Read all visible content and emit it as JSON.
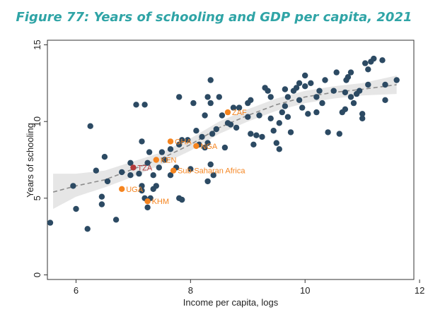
{
  "figure_title": "Figure 77: Years of schooling and GDP per capita, 2021",
  "colors": {
    "title": "#2fa4a6",
    "points": "#2c4a63",
    "highlight": "#f5841f",
    "highlight_label": "#f5841f",
    "tanzania": "#b33a3a",
    "fit_line": "#8c8c8c",
    "ci_band": "#e6e6e6"
  },
  "chart_data": {
    "type": "scatter",
    "title": "Figure 77: Years of schooling and GDP per capita, 2021",
    "xlabel": "Income per capita, logs",
    "ylabel": "Years of schooling",
    "xlim": [
      5.5,
      11.9
    ],
    "ylim": [
      -0.3,
      15.3
    ],
    "xticks": [
      6,
      8,
      10,
      12
    ],
    "yticks": [
      0,
      5,
      10,
      15
    ],
    "grid": false,
    "legend": "none",
    "series": [
      {
        "values": [
          [
            5.55,
            3.4
          ],
          [
            5.95,
            5.8
          ],
          [
            6.0,
            4.3
          ],
          [
            6.2,
            3.0
          ],
          [
            6.25,
            9.7
          ],
          [
            6.35,
            6.8
          ],
          [
            6.45,
            5.1
          ],
          [
            6.45,
            4.6
          ],
          [
            6.5,
            7.7
          ],
          [
            6.55,
            6.1
          ],
          [
            6.7,
            3.6
          ],
          [
            6.8,
            6.7
          ],
          [
            6.95,
            6.5
          ],
          [
            6.95,
            7.3
          ],
          [
            7.05,
            11.1
          ],
          [
            7.1,
            6.6
          ],
          [
            7.15,
            5.8
          ],
          [
            7.15,
            5.5
          ],
          [
            7.15,
            8.7
          ],
          [
            7.2,
            11.1
          ],
          [
            7.2,
            5.0
          ],
          [
            7.25,
            7.3
          ],
          [
            7.25,
            4.4
          ],
          [
            7.28,
            8.0
          ],
          [
            7.3,
            5.0
          ],
          [
            7.35,
            6.5
          ],
          [
            7.35,
            5.6
          ],
          [
            7.4,
            5.8
          ],
          [
            7.45,
            7.0
          ],
          [
            7.5,
            8.0
          ],
          [
            7.55,
            7.5
          ],
          [
            7.65,
            8.2
          ],
          [
            7.65,
            6.5
          ],
          [
            7.75,
            7.0
          ],
          [
            7.8,
            8.5
          ],
          [
            7.8,
            11.6
          ],
          [
            7.8,
            5.0
          ],
          [
            7.85,
            4.9
          ],
          [
            7.85,
            8.8
          ],
          [
            7.95,
            8.8
          ],
          [
            8.0,
            6.9
          ],
          [
            8.05,
            11.2
          ],
          [
            8.1,
            9.4
          ],
          [
            8.15,
            8.5
          ],
          [
            8.2,
            9.0
          ],
          [
            8.25,
            8.3
          ],
          [
            8.25,
            10.4
          ],
          [
            8.3,
            6.1
          ],
          [
            8.3,
            8.6
          ],
          [
            8.3,
            11.6
          ],
          [
            8.35,
            12.7
          ],
          [
            8.35,
            11.2
          ],
          [
            8.35,
            7.2
          ],
          [
            8.38,
            9.2
          ],
          [
            8.4,
            6.5
          ],
          [
            8.45,
            9.5
          ],
          [
            8.5,
            11.6
          ],
          [
            8.55,
            10.4
          ],
          [
            8.6,
            8.3
          ],
          [
            8.65,
            9.9
          ],
          [
            8.7,
            9.8
          ],
          [
            8.75,
            10.9
          ],
          [
            8.8,
            9.6
          ],
          [
            8.85,
            10.9
          ],
          [
            9.0,
            11.2
          ],
          [
            9.0,
            10.3
          ],
          [
            9.05,
            9.2
          ],
          [
            9.05,
            11.4
          ],
          [
            9.1,
            8.5
          ],
          [
            9.15,
            9.1
          ],
          [
            9.2,
            10.4
          ],
          [
            9.25,
            9.0
          ],
          [
            9.3,
            12.2
          ],
          [
            9.35,
            12.0
          ],
          [
            9.4,
            11.6
          ],
          [
            9.4,
            10.2
          ],
          [
            9.45,
            9.4
          ],
          [
            9.5,
            8.6
          ],
          [
            9.55,
            8.2
          ],
          [
            9.55,
            9.9
          ],
          [
            9.6,
            10.6
          ],
          [
            9.65,
            11.0
          ],
          [
            9.65,
            12.1
          ],
          [
            9.7,
            11.6
          ],
          [
            9.7,
            10.3
          ],
          [
            9.75,
            9.3
          ],
          [
            9.8,
            12.0
          ],
          [
            9.85,
            12.2
          ],
          [
            9.9,
            12.5
          ],
          [
            9.9,
            11.4
          ],
          [
            9.95,
            10.9
          ],
          [
            10.0,
            13.0
          ],
          [
            10.0,
            12.3
          ],
          [
            10.05,
            10.5
          ],
          [
            10.1,
            12.5
          ],
          [
            10.2,
            11.6
          ],
          [
            10.2,
            10.6
          ],
          [
            10.25,
            12.0
          ],
          [
            10.3,
            11.2
          ],
          [
            10.35,
            12.7
          ],
          [
            10.4,
            9.3
          ],
          [
            10.5,
            12.0
          ],
          [
            10.55,
            13.2
          ],
          [
            10.6,
            9.2
          ],
          [
            10.65,
            10.6
          ],
          [
            10.7,
            10.8
          ],
          [
            10.7,
            11.9
          ],
          [
            10.72,
            12.7
          ],
          [
            10.75,
            12.9
          ],
          [
            10.8,
            11.6
          ],
          [
            10.8,
            13.2
          ],
          [
            10.85,
            11.2
          ],
          [
            10.9,
            11.8
          ],
          [
            10.95,
            12.0
          ],
          [
            11.0,
            10.2
          ],
          [
            11.0,
            10.5
          ],
          [
            11.05,
            13.8
          ],
          [
            11.1,
            13.4
          ],
          [
            11.1,
            12.4
          ],
          [
            11.15,
            13.9
          ],
          [
            11.2,
            14.1
          ],
          [
            11.35,
            14.0
          ],
          [
            11.4,
            12.4
          ],
          [
            11.4,
            11.4
          ],
          [
            11.6,
            12.7
          ]
        ]
      }
    ],
    "highlighted": [
      {
        "label": "GHA",
        "x": 7.65,
        "y": 8.7
      },
      {
        "label": "ZAF",
        "x": 8.65,
        "y": 10.6
      },
      {
        "label": "NGA",
        "x": 8.1,
        "y": 8.4
      },
      {
        "label": "KEN",
        "x": 7.4,
        "y": 7.5
      },
      {
        "label": "TZA",
        "x": 7.0,
        "y": 7.0
      },
      {
        "label": "Sub-Saharan Africa",
        "x": 7.7,
        "y": 6.8
      },
      {
        "label": "UGA",
        "x": 6.8,
        "y": 5.6
      },
      {
        "label": "KHM",
        "x": 7.25,
        "y": 4.8
      }
    ],
    "fit": {
      "type": "dashed-smooth",
      "x": [
        5.6,
        6.0,
        6.5,
        7.0,
        7.5,
        8.0,
        8.5,
        9.0,
        9.5,
        10.0,
        10.5,
        11.0,
        11.6
      ],
      "y": [
        5.4,
        5.8,
        6.2,
        6.9,
        7.6,
        8.5,
        9.6,
        10.4,
        11.1,
        11.6,
        11.9,
        12.1,
        12.4
      ],
      "ci_lower": [
        4.3,
        5.1,
        5.7,
        6.4,
        7.2,
        8.1,
        9.2,
        10.0,
        10.7,
        11.2,
        11.5,
        11.7,
        11.8
      ],
      "ci_upper": [
        6.6,
        6.6,
        6.8,
        7.4,
        8.0,
        8.9,
        10.0,
        10.8,
        11.5,
        12.0,
        12.3,
        12.5,
        13.0
      ]
    }
  }
}
